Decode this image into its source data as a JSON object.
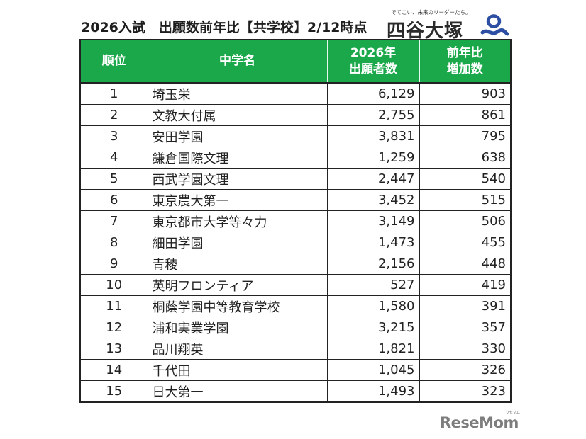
{
  "header": {
    "title": "2026入試　出願数前年比【共学校】2/12時点",
    "brand_tagline": "でてこい、未来のリーダーたち。",
    "brand_name": "四谷大塚",
    "brand_logo_icon": "yotsuya-otsuka-logo-icon",
    "brand_color": "#2d4fa3"
  },
  "table": {
    "header_color": "#1aa84a",
    "columns": [
      {
        "label": "順位"
      },
      {
        "label": "中学名"
      },
      {
        "label_line1": "2026年",
        "label_line2": "出願者数"
      },
      {
        "label_line1": "前年比",
        "label_line2": "増加数"
      }
    ],
    "rows": [
      {
        "rank": "1",
        "school": "埼玉栄",
        "applicants": "6,129",
        "increase": "903"
      },
      {
        "rank": "2",
        "school": "文教大付属",
        "applicants": "2,755",
        "increase": "861"
      },
      {
        "rank": "3",
        "school": "安田学園",
        "applicants": "3,831",
        "increase": "795"
      },
      {
        "rank": "4",
        "school": "鎌倉国際文理",
        "applicants": "1,259",
        "increase": "638"
      },
      {
        "rank": "5",
        "school": "西武学園文理",
        "applicants": "2,447",
        "increase": "540"
      },
      {
        "rank": "6",
        "school": "東京農大第一",
        "applicants": "3,452",
        "increase": "515"
      },
      {
        "rank": "7",
        "school": "東京都市大学等々力",
        "applicants": "3,149",
        "increase": "506"
      },
      {
        "rank": "8",
        "school": "細田学園",
        "applicants": "1,473",
        "increase": "455"
      },
      {
        "rank": "9",
        "school": "青稜",
        "applicants": "2,156",
        "increase": "448"
      },
      {
        "rank": "10",
        "school": "英明フロンティア",
        "applicants": "527",
        "increase": "419"
      },
      {
        "rank": "11",
        "school": "桐蔭学園中等教育学校",
        "applicants": "1,580",
        "increase": "391"
      },
      {
        "rank": "12",
        "school": "浦和実業学園",
        "applicants": "3,215",
        "increase": "357"
      },
      {
        "rank": "13",
        "school": "品川翔英",
        "applicants": "1,821",
        "increase": "330"
      },
      {
        "rank": "14",
        "school": "千代田",
        "applicants": "1,045",
        "increase": "326"
      },
      {
        "rank": "15",
        "school": "日大第一",
        "applicants": "1,493",
        "increase": "323"
      }
    ]
  },
  "footer": {
    "watermark": "ReseMom",
    "watermark_ruby": "リセマム"
  }
}
